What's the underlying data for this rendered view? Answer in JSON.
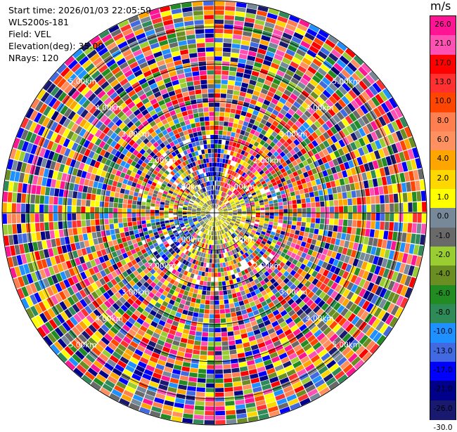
{
  "header": {
    "start_time": "Start time: 2026/01/03 22:05:59",
    "instrument": "WLS200s-181",
    "field": "Field: VEL",
    "elevation": "Elevation(deg): 35.00",
    "nrays": "NRays: 120"
  },
  "chart_data": {
    "type": "heatmap",
    "projection": "polar",
    "unit": "m/s",
    "range_rings": [
      "1.00km",
      "2.00km",
      "3.00km",
      "4.00km",
      "5.00km"
    ],
    "range_ring_km": [
      1,
      2,
      3,
      4,
      5
    ],
    "max_range_km": 5.7,
    "nrays": 120,
    "colorbar": {
      "ticks": [
        "26.0",
        "21.0",
        "17.0",
        "13.0",
        "10.0",
        "8.0",
        "6.0",
        "4.0",
        "2.0",
        "1.0",
        "0.0",
        "-1.0",
        "-2.0",
        "-4.0",
        "-6.0",
        "-8.0",
        "-10.0",
        "-13.0",
        "-17.0",
        "-21.0",
        "-26.0",
        "-30.0"
      ],
      "colors": [
        "#ff1493",
        "#ff50b4",
        "#ff0000",
        "#ff3030",
        "#ff4500",
        "#ff7f50",
        "#ff9060",
        "#ffa500",
        "#ffd700",
        "#ffff00",
        "#778899",
        "#696969",
        "#9acd32",
        "#6b8e23",
        "#228b22",
        "#2e8b57",
        "#1e90ff",
        "#4169e1",
        "#0000ff",
        "#00008b",
        "#191970"
      ]
    }
  }
}
